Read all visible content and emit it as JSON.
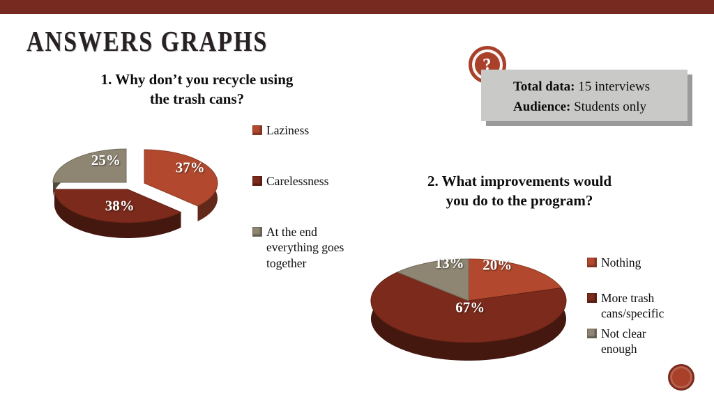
{
  "slide": {
    "title": "ANSWERS GRAPHS",
    "accent_color": "#772a1f"
  },
  "help_icon": {
    "glyph": "?"
  },
  "info_box": {
    "rows": [
      {
        "label": "Total data:",
        "value": " 15 interviews"
      },
      {
        "label": "Audience:",
        "value": " Students only"
      }
    ]
  },
  "chart_data": [
    {
      "type": "pie",
      "title": "1. Why don’t you recycle using the trash cans?",
      "title_lines": [
        "1. Why don’t you recycle using",
        "the trash cans?"
      ],
      "labels": [
        "Laziness",
        "Carelessness",
        "At the end everything goes together"
      ],
      "values": [
        37,
        38,
        25
      ],
      "value_labels": [
        "37%",
        "38%",
        "25%"
      ],
      "colors": [
        "#b2492e",
        "#7c2a1c",
        "#8e8673"
      ],
      "exploded_slice": "Laziness",
      "legend_position": "right",
      "style": "3d-pie"
    },
    {
      "type": "pie",
      "title": "2. What improvements would you do to the program?",
      "title_lines": [
        "2. What improvements would",
        "you do to the program?"
      ],
      "labels": [
        "Nothing",
        "More trash cans/specific",
        "Not clear enough"
      ],
      "values": [
        20,
        67,
        13
      ],
      "value_labels": [
        "20%",
        "67%",
        "13%"
      ],
      "colors": [
        "#b2492e",
        "#7c2a1c",
        "#8e8673"
      ],
      "exploded_slice": null,
      "legend_position": "right",
      "style": "3d-pie"
    }
  ]
}
